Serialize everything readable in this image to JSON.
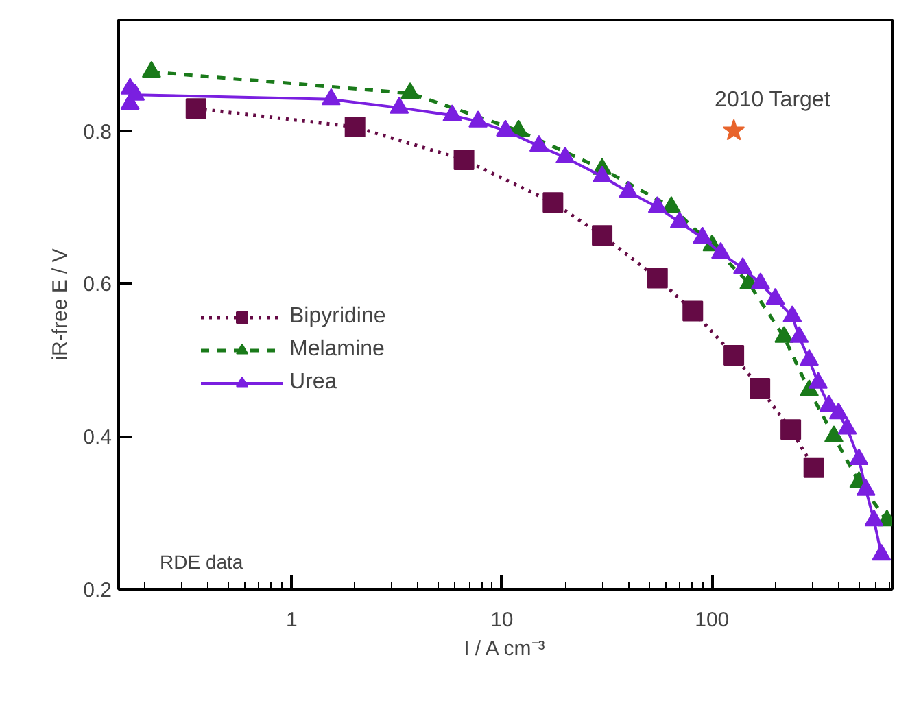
{
  "chart_data": {
    "type": "line",
    "xlabel": "I / A cm⁻³",
    "ylabel": "iR-free E / V",
    "log": "x",
    "xlim": [
      0.15,
      720
    ],
    "ylim": [
      0.2,
      0.945
    ],
    "xticks": [
      1,
      10,
      100
    ],
    "yticks": [
      0.2,
      0.4,
      0.6,
      0.8
    ],
    "grid": false,
    "legend": "center left",
    "annotations": [
      {
        "text": "2010 Target",
        "x": 127,
        "y": 0.8
      },
      "RDE data"
    ],
    "series": [
      {
        "name": "Bipyridine",
        "color": "#650a45",
        "marker": "square",
        "line_style": "dotted",
        "x": [
          0.35,
          2.0,
          6.6,
          17.5,
          30,
          55,
          81,
          127,
          169,
          237,
          305
        ],
        "values": [
          0.829,
          0.805,
          0.762,
          0.706,
          0.663,
          0.607,
          0.564,
          0.506,
          0.463,
          0.409,
          0.359
        ]
      },
      {
        "name": "Melamine",
        "color": "#1a7a1a",
        "marker": "triangle",
        "line_style": "dashed",
        "x": [
          0.215,
          3.66,
          12,
          30,
          64,
          100,
          150,
          220,
          290,
          380,
          500,
          680
        ],
        "values": [
          0.877,
          0.849,
          0.8,
          0.75,
          0.7,
          0.65,
          0.6,
          0.53,
          0.46,
          0.4,
          0.34,
          0.29
        ]
      },
      {
        "name": "Urea",
        "color": "#7a1fe0",
        "marker": "triangle",
        "line_style": "solid",
        "x": [
          0.17,
          0.17,
          0.18,
          1.54,
          3.25,
          5.8,
          7.7,
          10.4,
          15,
          20,
          30,
          40,
          55,
          70,
          90,
          110,
          140,
          170,
          200,
          241,
          260,
          290,
          320,
          360,
          400,
          440,
          500,
          540,
          590,
          640
        ],
        "values": [
          0.835,
          0.855,
          0.847,
          0.841,
          0.83,
          0.82,
          0.812,
          0.8,
          0.78,
          0.765,
          0.74,
          0.72,
          0.7,
          0.68,
          0.66,
          0.64,
          0.62,
          0.6,
          0.58,
          0.557,
          0.53,
          0.5,
          0.47,
          0.44,
          0.43,
          0.41,
          0.37,
          0.33,
          0.29,
          0.245
        ]
      },
      {
        "type": "scatter",
        "color": "#e8642c",
        "marker": "star",
        "x": [
          127
        ],
        "values": [
          0.8
        ]
      }
    ]
  }
}
